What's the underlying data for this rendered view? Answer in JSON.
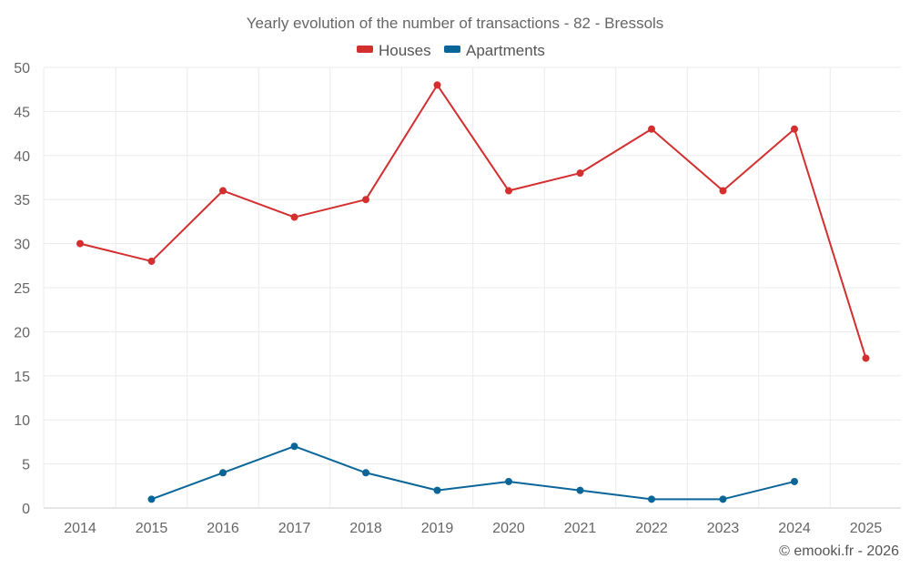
{
  "chart_data": {
    "type": "line",
    "title": "Yearly evolution of the number of transactions - 82 - Bressols",
    "xlabel": "",
    "ylabel": "",
    "categories": [
      "2014",
      "2015",
      "2016",
      "2017",
      "2018",
      "2019",
      "2020",
      "2021",
      "2022",
      "2023",
      "2024",
      "2025"
    ],
    "ylim": [
      0,
      50
    ],
    "yticks": [
      0,
      5,
      10,
      15,
      20,
      25,
      30,
      35,
      40,
      45,
      50
    ],
    "grid": true,
    "legend_position": "top-center",
    "series": [
      {
        "name": "Houses",
        "color": "#d32f2f",
        "values": [
          30,
          28,
          36,
          33,
          35,
          48,
          36,
          38,
          43,
          36,
          43,
          17
        ]
      },
      {
        "name": "Apartments",
        "color": "#0a6699",
        "values": [
          null,
          1,
          4,
          7,
          4,
          2,
          3,
          2,
          1,
          1,
          3,
          null
        ]
      }
    ],
    "credit": "© emooki.fr - 2026"
  }
}
